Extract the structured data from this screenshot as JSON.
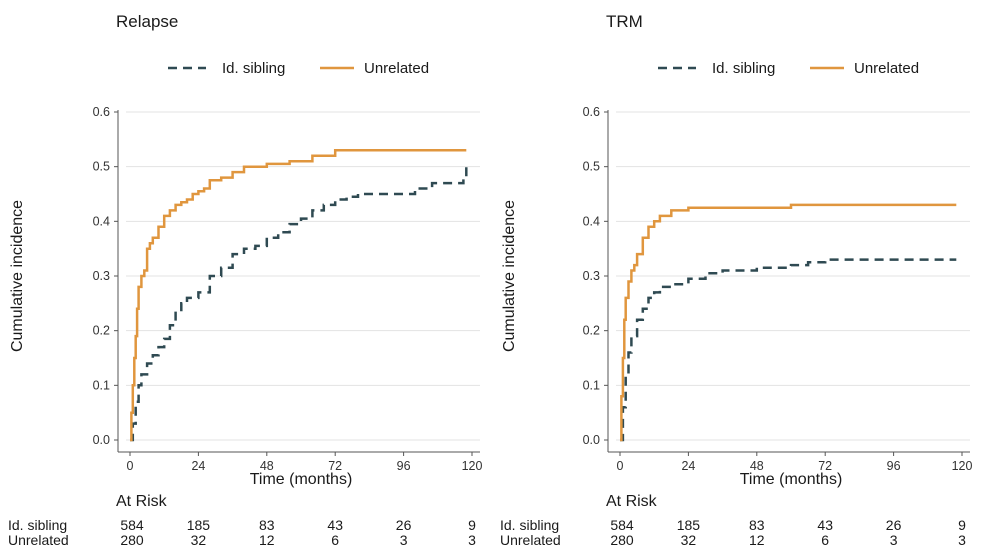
{
  "colors": {
    "sibling": "#2f4a52",
    "unrelated": "#e0963e",
    "grid": "#e3e3e3",
    "axis": "#555555"
  },
  "chart_data": [
    {
      "type": "line",
      "title": "Relapse",
      "xlabel": "Time (months)",
      "ylabel": "Cumulative incidence",
      "xlim": [
        0,
        120
      ],
      "ylim": [
        0,
        0.6
      ],
      "xticks": [
        0,
        24,
        48,
        72,
        96,
        120
      ],
      "yticks": [
        "0.0",
        "0.1",
        "0.2",
        "0.3",
        "0.4",
        "0.5",
        "0.6"
      ],
      "grid": "horizontal",
      "legend": "top",
      "series": [
        {
          "name": "Id. sibling",
          "style": "dashed",
          "x": [
            0,
            1,
            2,
            3,
            4,
            6,
            8,
            10,
            12,
            14,
            16,
            18,
            20,
            24,
            28,
            32,
            36,
            40,
            44,
            48,
            52,
            56,
            60,
            64,
            68,
            72,
            76,
            80,
            84,
            90,
            96,
            100,
            106,
            112,
            117,
            118
          ],
          "y": [
            0,
            0.03,
            0.07,
            0.1,
            0.12,
            0.14,
            0.155,
            0.17,
            0.185,
            0.21,
            0.235,
            0.25,
            0.26,
            0.27,
            0.3,
            0.315,
            0.34,
            0.35,
            0.355,
            0.37,
            0.38,
            0.395,
            0.405,
            0.42,
            0.43,
            0.44,
            0.445,
            0.45,
            0.45,
            0.45,
            0.45,
            0.46,
            0.47,
            0.47,
            0.48,
            0.5
          ]
        },
        {
          "name": "Unrelated",
          "style": "solid",
          "x": [
            0,
            0.5,
            1,
            1.5,
            2,
            2.5,
            3,
            4,
            5,
            6,
            7,
            8,
            10,
            12,
            14,
            16,
            18,
            20,
            22,
            24,
            26,
            28,
            32,
            36,
            40,
            44,
            48,
            56,
            64,
            72,
            80,
            90,
            100,
            110,
            118
          ],
          "y": [
            0,
            0.05,
            0.1,
            0.15,
            0.19,
            0.24,
            0.28,
            0.3,
            0.31,
            0.35,
            0.36,
            0.37,
            0.39,
            0.41,
            0.42,
            0.43,
            0.435,
            0.44,
            0.45,
            0.455,
            0.46,
            0.475,
            0.48,
            0.49,
            0.5,
            0.5,
            0.505,
            0.51,
            0.52,
            0.53,
            0.53,
            0.53,
            0.53,
            0.53,
            0.53
          ]
        }
      ],
      "at_risk": {
        "label": "At Risk",
        "times": [
          0,
          24,
          48,
          72,
          96,
          120
        ],
        "rows": [
          {
            "group": "Id. sibling",
            "values": [
              "584",
              "185",
              "83",
              "43",
              "26",
              "9"
            ]
          },
          {
            "group": "Unrelated",
            "values": [
              "280",
              "32",
              "12",
              "6",
              "3",
              "3"
            ]
          }
        ]
      }
    },
    {
      "type": "line",
      "title": "TRM",
      "xlabel": "Time (months)",
      "ylabel": "Cumulative incidence",
      "xlim": [
        0,
        120
      ],
      "ylim": [
        0,
        0.6
      ],
      "xticks": [
        0,
        24,
        48,
        72,
        96,
        120
      ],
      "yticks": [
        "0.0",
        "0.1",
        "0.2",
        "0.3",
        "0.4",
        "0.5",
        "0.6"
      ],
      "grid": "horizontal",
      "legend": "top",
      "series": [
        {
          "name": "Id. sibling",
          "style": "dashed",
          "x": [
            0,
            1,
            2,
            3,
            4,
            6,
            8,
            10,
            12,
            14,
            18,
            24,
            30,
            36,
            48,
            60,
            66,
            72,
            84,
            96,
            108,
            118
          ],
          "y": [
            0,
            0.06,
            0.12,
            0.16,
            0.19,
            0.22,
            0.24,
            0.26,
            0.27,
            0.28,
            0.285,
            0.295,
            0.305,
            0.31,
            0.315,
            0.32,
            0.325,
            0.33,
            0.33,
            0.33,
            0.33,
            0.33
          ]
        },
        {
          "name": "Unrelated",
          "style": "solid",
          "x": [
            0,
            0.5,
            1,
            1.5,
            2,
            3,
            4,
            5,
            6,
            8,
            10,
            12,
            14,
            18,
            24,
            36,
            48,
            57,
            60,
            72,
            96,
            118
          ],
          "y": [
            0,
            0.08,
            0.15,
            0.22,
            0.26,
            0.29,
            0.31,
            0.32,
            0.34,
            0.37,
            0.39,
            0.4,
            0.41,
            0.42,
            0.425,
            0.425,
            0.425,
            0.425,
            0.43,
            0.43,
            0.43,
            0.43
          ]
        }
      ],
      "at_risk": {
        "label": "At Risk",
        "times": [
          0,
          24,
          48,
          72,
          96,
          120
        ],
        "rows": [
          {
            "group": "Id. sibling",
            "values": [
              "584",
              "185",
              "83",
              "43",
              "26",
              "9"
            ]
          },
          {
            "group": "Unrelated",
            "values": [
              "280",
              "32",
              "12",
              "6",
              "3",
              "3"
            ]
          }
        ]
      }
    }
  ]
}
